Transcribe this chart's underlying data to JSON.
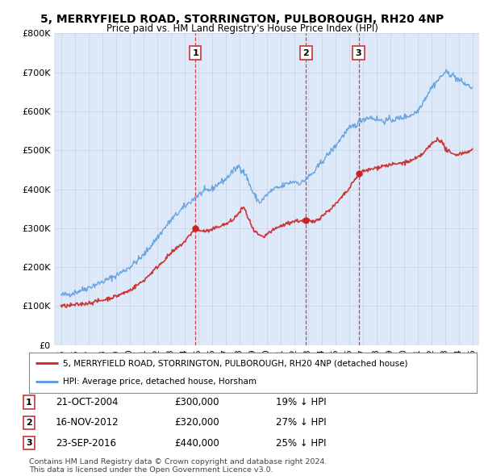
{
  "title": "5, MERRYFIELD ROAD, STORRINGTON, PULBOROUGH, RH20 4NP",
  "subtitle": "Price paid vs. HM Land Registry's House Price Index (HPI)",
  "plot_bg_color": "#dde8f8",
  "sale_labels": [
    "1",
    "2",
    "3"
  ],
  "legend_line1": "5, MERRYFIELD ROAD, STORRINGTON, PULBOROUGH, RH20 4NP (detached house)",
  "legend_line2": "HPI: Average price, detached house, Horsham",
  "table_rows": [
    [
      "1",
      "21-OCT-2004",
      "£300,000",
      "19% ↓ HPI"
    ],
    [
      "2",
      "16-NOV-2012",
      "£320,000",
      "27% ↓ HPI"
    ],
    [
      "3",
      "23-SEP-2016",
      "£440,000",
      "25% ↓ HPI"
    ]
  ],
  "footnote1": "Contains HM Land Registry data © Crown copyright and database right 2024.",
  "footnote2": "This data is licensed under the Open Government Licence v3.0.",
  "hpi_color": "#5599dd",
  "price_color": "#cc2222",
  "dashed_line_color": "#cc3333",
  "ylim": [
    0,
    800000
  ],
  "yticks": [
    0,
    100000,
    200000,
    300000,
    400000,
    500000,
    600000,
    700000,
    800000
  ],
  "ytick_labels": [
    "£0",
    "£100K",
    "£200K",
    "£300K",
    "£400K",
    "£500K",
    "£600K",
    "£700K",
    "£800K"
  ]
}
